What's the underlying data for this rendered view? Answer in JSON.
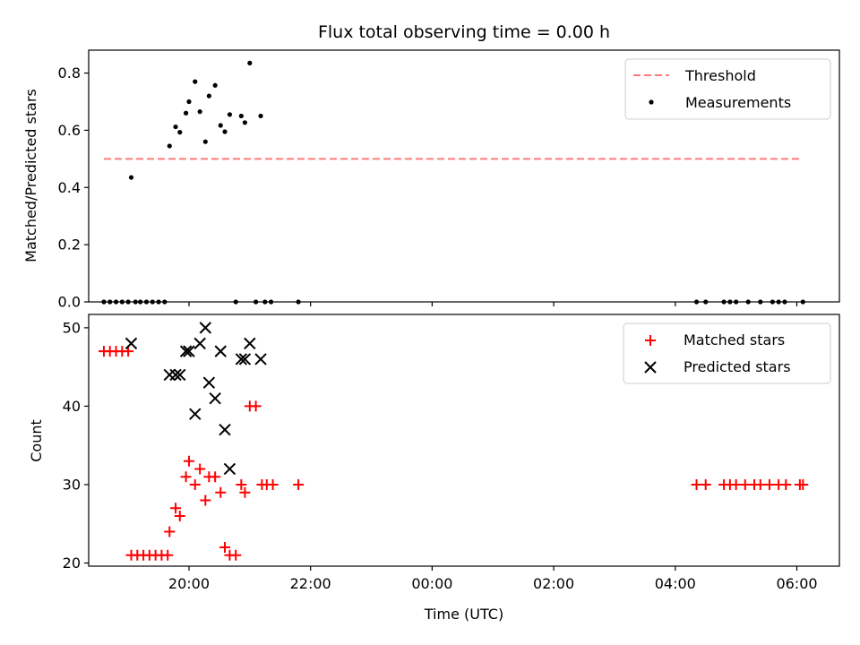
{
  "title": "Flux total observing time = 0.00 h",
  "chart_data": [
    {
      "type": "scatter",
      "name": "top",
      "ylabel": "Matched/Predicted stars",
      "xlim": [
        18.35,
        30.7
      ],
      "ylim": [
        0,
        0.88
      ],
      "yticks": [
        0.0,
        0.2,
        0.4,
        0.6,
        0.8
      ],
      "ytick_labels": [
        "0.0",
        "0.2",
        "0.4",
        "0.6",
        "0.8"
      ],
      "xticks": [
        20,
        22,
        24,
        26,
        28,
        30
      ],
      "threshold": {
        "name": "Threshold",
        "y": 0.5,
        "x": [
          18.6,
          30.05
        ],
        "color": "#ff7b7b"
      },
      "legend": {
        "placement": "top-right",
        "entries": [
          "Threshold",
          "Measurements"
        ]
      },
      "series": [
        {
          "name": "Measurements",
          "color": "#000000",
          "marker": "dot",
          "points": [
            [
              18.6,
              0
            ],
            [
              18.7,
              0
            ],
            [
              18.8,
              0
            ],
            [
              18.9,
              0
            ],
            [
              19.0,
              0
            ],
            [
              19.05,
              0.435
            ],
            [
              19.12,
              0
            ],
            [
              19.2,
              0
            ],
            [
              19.3,
              0
            ],
            [
              19.4,
              0
            ],
            [
              19.5,
              0
            ],
            [
              19.6,
              0
            ],
            [
              19.68,
              0.545
            ],
            [
              19.78,
              0.612
            ],
            [
              19.85,
              0.593
            ],
            [
              19.95,
              0.66
            ],
            [
              20.0,
              0.7
            ],
            [
              20.1,
              0.77
            ],
            [
              20.18,
              0.665
            ],
            [
              20.27,
              0.56
            ],
            [
              20.33,
              0.72
            ],
            [
              20.43,
              0.757
            ],
            [
              20.52,
              0.617
            ],
            [
              20.59,
              0.595
            ],
            [
              20.67,
              0.655
            ],
            [
              20.77,
              0
            ],
            [
              20.86,
              0.65
            ],
            [
              20.92,
              0.627
            ],
            [
              21.0,
              0.835
            ],
            [
              21.1,
              0
            ],
            [
              21.18,
              0.65
            ],
            [
              21.25,
              0
            ],
            [
              21.35,
              0
            ],
            [
              21.8,
              0
            ],
            [
              28.35,
              0
            ],
            [
              28.5,
              0
            ],
            [
              28.8,
              0
            ],
            [
              28.9,
              0
            ],
            [
              29.0,
              0
            ],
            [
              29.2,
              0
            ],
            [
              29.4,
              0
            ],
            [
              29.6,
              0
            ],
            [
              29.7,
              0
            ],
            [
              29.8,
              0
            ],
            [
              30.1,
              0
            ]
          ]
        }
      ]
    },
    {
      "type": "scatter",
      "name": "bottom",
      "xlabel": "Time (UTC)",
      "ylabel": "Count",
      "xlim": [
        18.35,
        30.7
      ],
      "ylim": [
        19.6,
        51.7
      ],
      "yticks": [
        20,
        30,
        40,
        50
      ],
      "ytick_labels": [
        "20",
        "30",
        "40",
        "50"
      ],
      "xticks": [
        20,
        22,
        24,
        26,
        28,
        30
      ],
      "xtick_labels": [
        "20:00",
        "22:00",
        "00:00",
        "02:00",
        "04:00",
        "06:00"
      ],
      "legend": {
        "placement": "top-right",
        "entries": [
          "Matched stars",
          "Predicted stars"
        ]
      },
      "series": [
        {
          "name": "Matched stars",
          "color": "#ff0000",
          "marker": "plus",
          "points": [
            [
              18.6,
              47
            ],
            [
              18.7,
              47
            ],
            [
              18.8,
              47
            ],
            [
              18.9,
              47
            ],
            [
              19.0,
              47
            ],
            [
              19.05,
              21
            ],
            [
              19.15,
              21
            ],
            [
              19.25,
              21
            ],
            [
              19.35,
              21
            ],
            [
              19.45,
              21
            ],
            [
              19.55,
              21
            ],
            [
              19.65,
              21
            ],
            [
              19.68,
              24
            ],
            [
              19.78,
              27
            ],
            [
              19.85,
              26
            ],
            [
              19.95,
              31
            ],
            [
              20.0,
              33
            ],
            [
              20.1,
              30
            ],
            [
              20.18,
              32
            ],
            [
              20.27,
              28
            ],
            [
              20.33,
              31
            ],
            [
              20.43,
              31
            ],
            [
              20.52,
              29
            ],
            [
              20.59,
              22
            ],
            [
              20.67,
              21
            ],
            [
              20.77,
              21
            ],
            [
              20.86,
              30
            ],
            [
              20.92,
              29
            ],
            [
              21.0,
              40
            ],
            [
              21.1,
              40
            ],
            [
              21.2,
              30
            ],
            [
              21.28,
              30
            ],
            [
              21.38,
              30
            ],
            [
              21.8,
              30
            ],
            [
              28.35,
              30
            ],
            [
              28.5,
              30
            ],
            [
              28.8,
              30
            ],
            [
              28.9,
              30
            ],
            [
              29.0,
              30
            ],
            [
              29.15,
              30
            ],
            [
              29.3,
              30
            ],
            [
              29.4,
              30
            ],
            [
              29.55,
              30
            ],
            [
              29.7,
              30
            ],
            [
              29.82,
              30
            ],
            [
              30.05,
              30
            ],
            [
              30.1,
              30
            ]
          ]
        },
        {
          "name": "Predicted stars",
          "color": "#000000",
          "marker": "cross",
          "points": [
            [
              19.05,
              48
            ],
            [
              19.68,
              44
            ],
            [
              19.78,
              44
            ],
            [
              19.85,
              44
            ],
            [
              19.95,
              47
            ],
            [
              20.0,
              47
            ],
            [
              20.1,
              39
            ],
            [
              20.18,
              48
            ],
            [
              20.27,
              50
            ],
            [
              20.33,
              43
            ],
            [
              20.43,
              41
            ],
            [
              20.52,
              47
            ],
            [
              20.59,
              37
            ],
            [
              20.67,
              32
            ],
            [
              20.86,
              46
            ],
            [
              20.92,
              46
            ],
            [
              21.0,
              48
            ],
            [
              21.18,
              46
            ]
          ]
        }
      ]
    }
  ]
}
